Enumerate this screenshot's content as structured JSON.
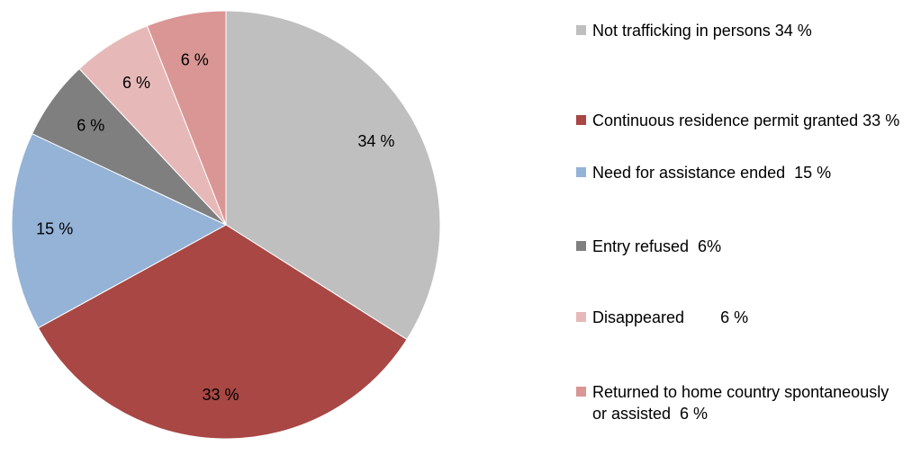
{
  "chart_data": {
    "type": "pie",
    "categories": [
      "Not trafficking in persons 34 %",
      "Continuous residence permit granted 33 %",
      "Need for assistance ended  15 %",
      "Entry refused  6%",
      "Disappeared        6 %",
      "Returned to home country spontaneously or assisted  6 %"
    ],
    "values": [
      34,
      33,
      15,
      6,
      6,
      6
    ],
    "value_labels": [
      "34 %",
      "33 %",
      "15 %",
      "6 %",
      "6 %",
      "6 %"
    ],
    "colors": [
      "#bfbfbf",
      "#a84744",
      "#95b3d7",
      "#7f7f7f",
      "#e6b9b8",
      "#d99694"
    ],
    "legend": "right"
  }
}
